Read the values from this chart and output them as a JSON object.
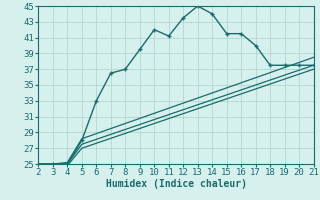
{
  "xlabel": "Humidex (Indice chaleur)",
  "bg_color": "#d6f0ee",
  "grid_color": "#b0d8d0",
  "line_color": "#1a6b6b",
  "xlim": [
    2,
    21
  ],
  "ylim": [
    25,
    45
  ],
  "xticks": [
    2,
    3,
    4,
    5,
    6,
    7,
    8,
    9,
    10,
    11,
    12,
    13,
    14,
    15,
    16,
    17,
    18,
    19,
    20,
    21
  ],
  "yticks": [
    25,
    27,
    29,
    31,
    33,
    35,
    37,
    39,
    41,
    43,
    45
  ],
  "main_x": [
    2,
    3,
    4,
    5,
    6,
    7,
    8,
    9,
    10,
    11,
    12,
    13,
    14,
    15,
    16,
    17,
    18,
    19,
    20,
    21
  ],
  "main_y": [
    25,
    25,
    25,
    28,
    33,
    36.5,
    37,
    39.5,
    42,
    41.2,
    43.5,
    45,
    44,
    41.5,
    41.5,
    40,
    37.5,
    37.5,
    37.5,
    37.5
  ],
  "line1_x": [
    2,
    3,
    4,
    5,
    21
  ],
  "line1_y": [
    25,
    25,
    25.2,
    28.2,
    38.5
  ],
  "line2_x": [
    2,
    3,
    4,
    5,
    21
  ],
  "line2_y": [
    25,
    25,
    25.0,
    27.5,
    37.5
  ],
  "line3_x": [
    2,
    3,
    4,
    5,
    21
  ],
  "line3_y": [
    25,
    24.8,
    24.8,
    27.0,
    37.0
  ],
  "tick_fontsize": 6.5,
  "xlabel_fontsize": 7
}
